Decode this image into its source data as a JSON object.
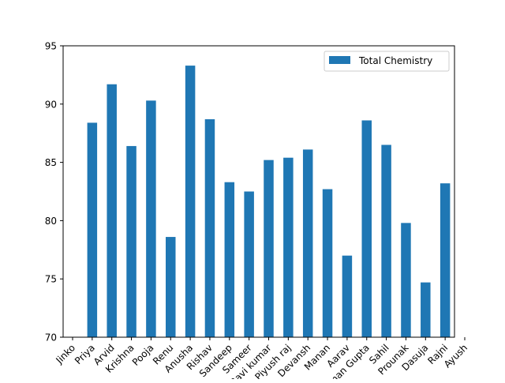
{
  "chart_data": {
    "type": "bar",
    "title": "",
    "xlabel": "",
    "ylabel": "",
    "categories": [
      "Jinko",
      "Priya",
      "Arvid",
      "Krishna",
      "Pooja",
      "Renu",
      "Anusha",
      "Rishav",
      "Sandeep",
      "Sameer",
      "Ravi kumar",
      "Piyush raj",
      "Devansh",
      "Manan",
      "Aarav",
      "Aman Gupta",
      "Sahil",
      "Prounak",
      "Dasuja",
      "Rajni",
      "Ayush"
    ],
    "series": [
      {
        "name": "Total Chemistry",
        "color": "#1f77b4",
        "values": [
          null,
          88.4,
          91.7,
          86.4,
          90.3,
          78.6,
          93.3,
          88.7,
          83.3,
          82.5,
          85.2,
          85.4,
          86.1,
          82.7,
          77.0,
          88.6,
          86.5,
          79.8,
          74.7,
          83.2,
          null
        ]
      }
    ],
    "ylim": [
      70,
      95
    ],
    "yticks": [
      70,
      75,
      80,
      85,
      90,
      95
    ],
    "grid": false,
    "legend_position": "top-right"
  }
}
